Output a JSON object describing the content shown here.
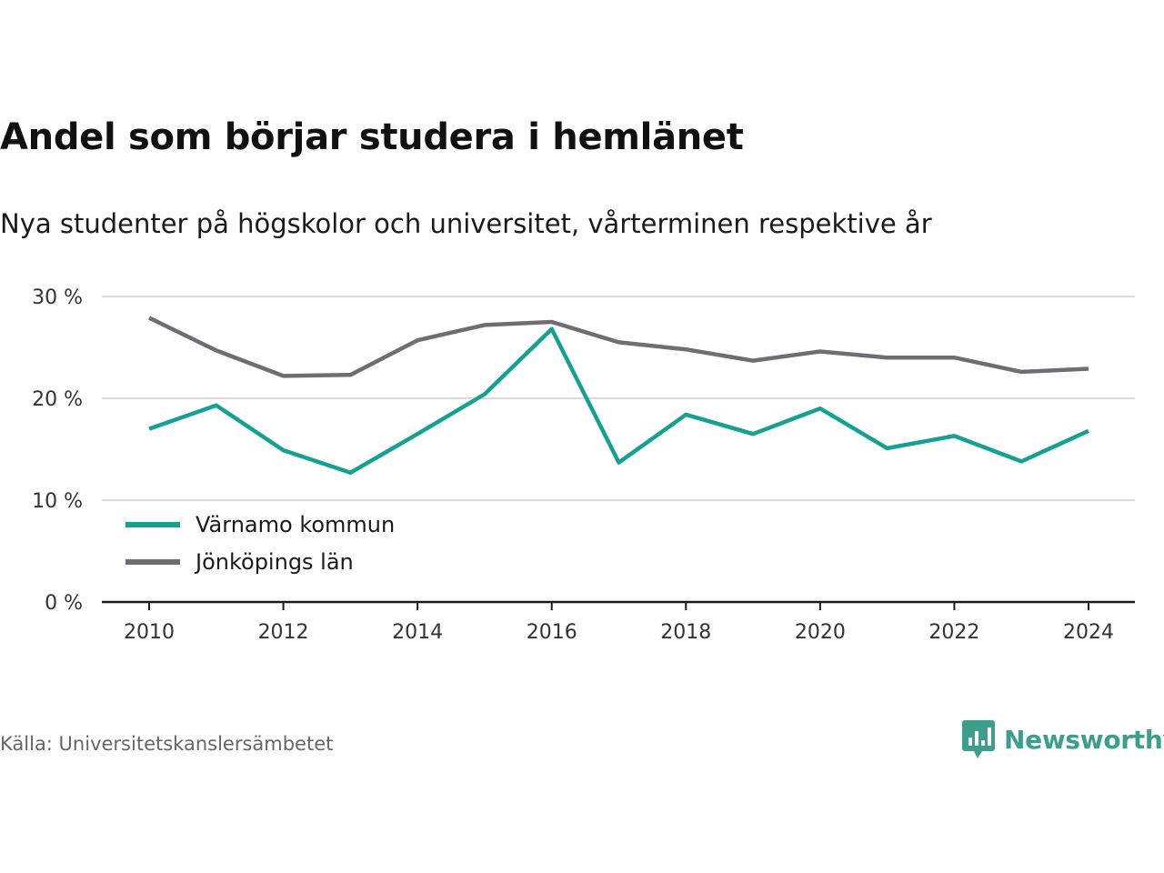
{
  "header": {
    "title": "Andel som börjar studera i hemlänet",
    "subtitle": "Nya studenter på högskolor och universitet, vårterminen respektive år"
  },
  "chart_data": {
    "type": "line",
    "x": [
      2010,
      2011,
      2012,
      2013,
      2014,
      2015,
      2016,
      2017,
      2018,
      2019,
      2020,
      2021,
      2022,
      2023,
      2024
    ],
    "x_tick_labels": [
      "2010",
      "2012",
      "2014",
      "2016",
      "2018",
      "2020",
      "2022",
      "2024"
    ],
    "x_ticks": [
      2010,
      2012,
      2014,
      2016,
      2018,
      2020,
      2022,
      2024
    ],
    "y_ticks": [
      0,
      10,
      20,
      30
    ],
    "y_tick_labels": [
      "0 %",
      "10 %",
      "20 %",
      "30 %"
    ],
    "ylim": [
      0,
      30
    ],
    "grid": true,
    "legend_position": "bottom-left",
    "series": [
      {
        "name": "Värnamo kommun",
        "color": "#14a193",
        "values": [
          17.0,
          19.3,
          14.9,
          12.7,
          16.5,
          20.4,
          26.8,
          13.7,
          18.4,
          16.5,
          19.0,
          15.1,
          16.3,
          13.8,
          16.8
        ]
      },
      {
        "name": "Jönköpings län",
        "color": "#6e6d73",
        "values": [
          27.9,
          24.7,
          22.2,
          22.3,
          25.7,
          27.2,
          27.5,
          25.5,
          24.8,
          23.7,
          24.6,
          24.0,
          24.0,
          22.6,
          22.9
        ]
      }
    ]
  },
  "footer": {
    "source": "Källa: Universitetskanslersämbetet",
    "brand": "Newsworthy",
    "brand_color": "#3d9e8c",
    "brand_icon": "newsworthy-logo-icon"
  }
}
